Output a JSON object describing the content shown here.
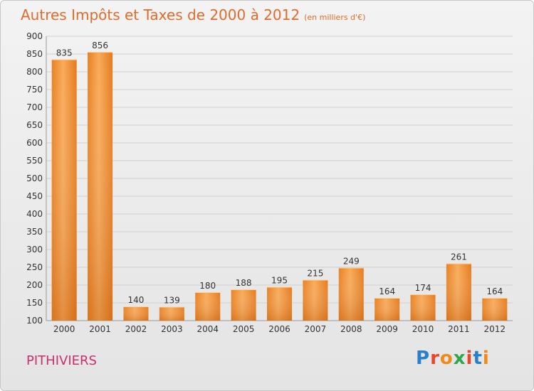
{
  "title": "Autres Impôts et Taxes de 2000 à 2012",
  "subtitle": "(en milliers d'€)",
  "commune": "PITHIVIERS",
  "logo": "Proxiti",
  "colors": {
    "bar": "#f0892e",
    "bar_light": "#f8ab5a",
    "title": "#e06b2c",
    "commune": "#c9306b"
  },
  "chart_data": {
    "type": "bar",
    "categories": [
      "2000",
      "2001",
      "2002",
      "2003",
      "2004",
      "2005",
      "2006",
      "2007",
      "2008",
      "2009",
      "2010",
      "2011",
      "2012"
    ],
    "values": [
      835,
      856,
      140,
      139,
      180,
      188,
      195,
      215,
      249,
      164,
      174,
      261,
      164
    ],
    "ylim": [
      100,
      900
    ],
    "yticks": [
      100,
      150,
      200,
      250,
      300,
      350,
      400,
      450,
      500,
      550,
      600,
      650,
      700,
      750,
      800,
      850,
      900
    ],
    "grid": true
  }
}
